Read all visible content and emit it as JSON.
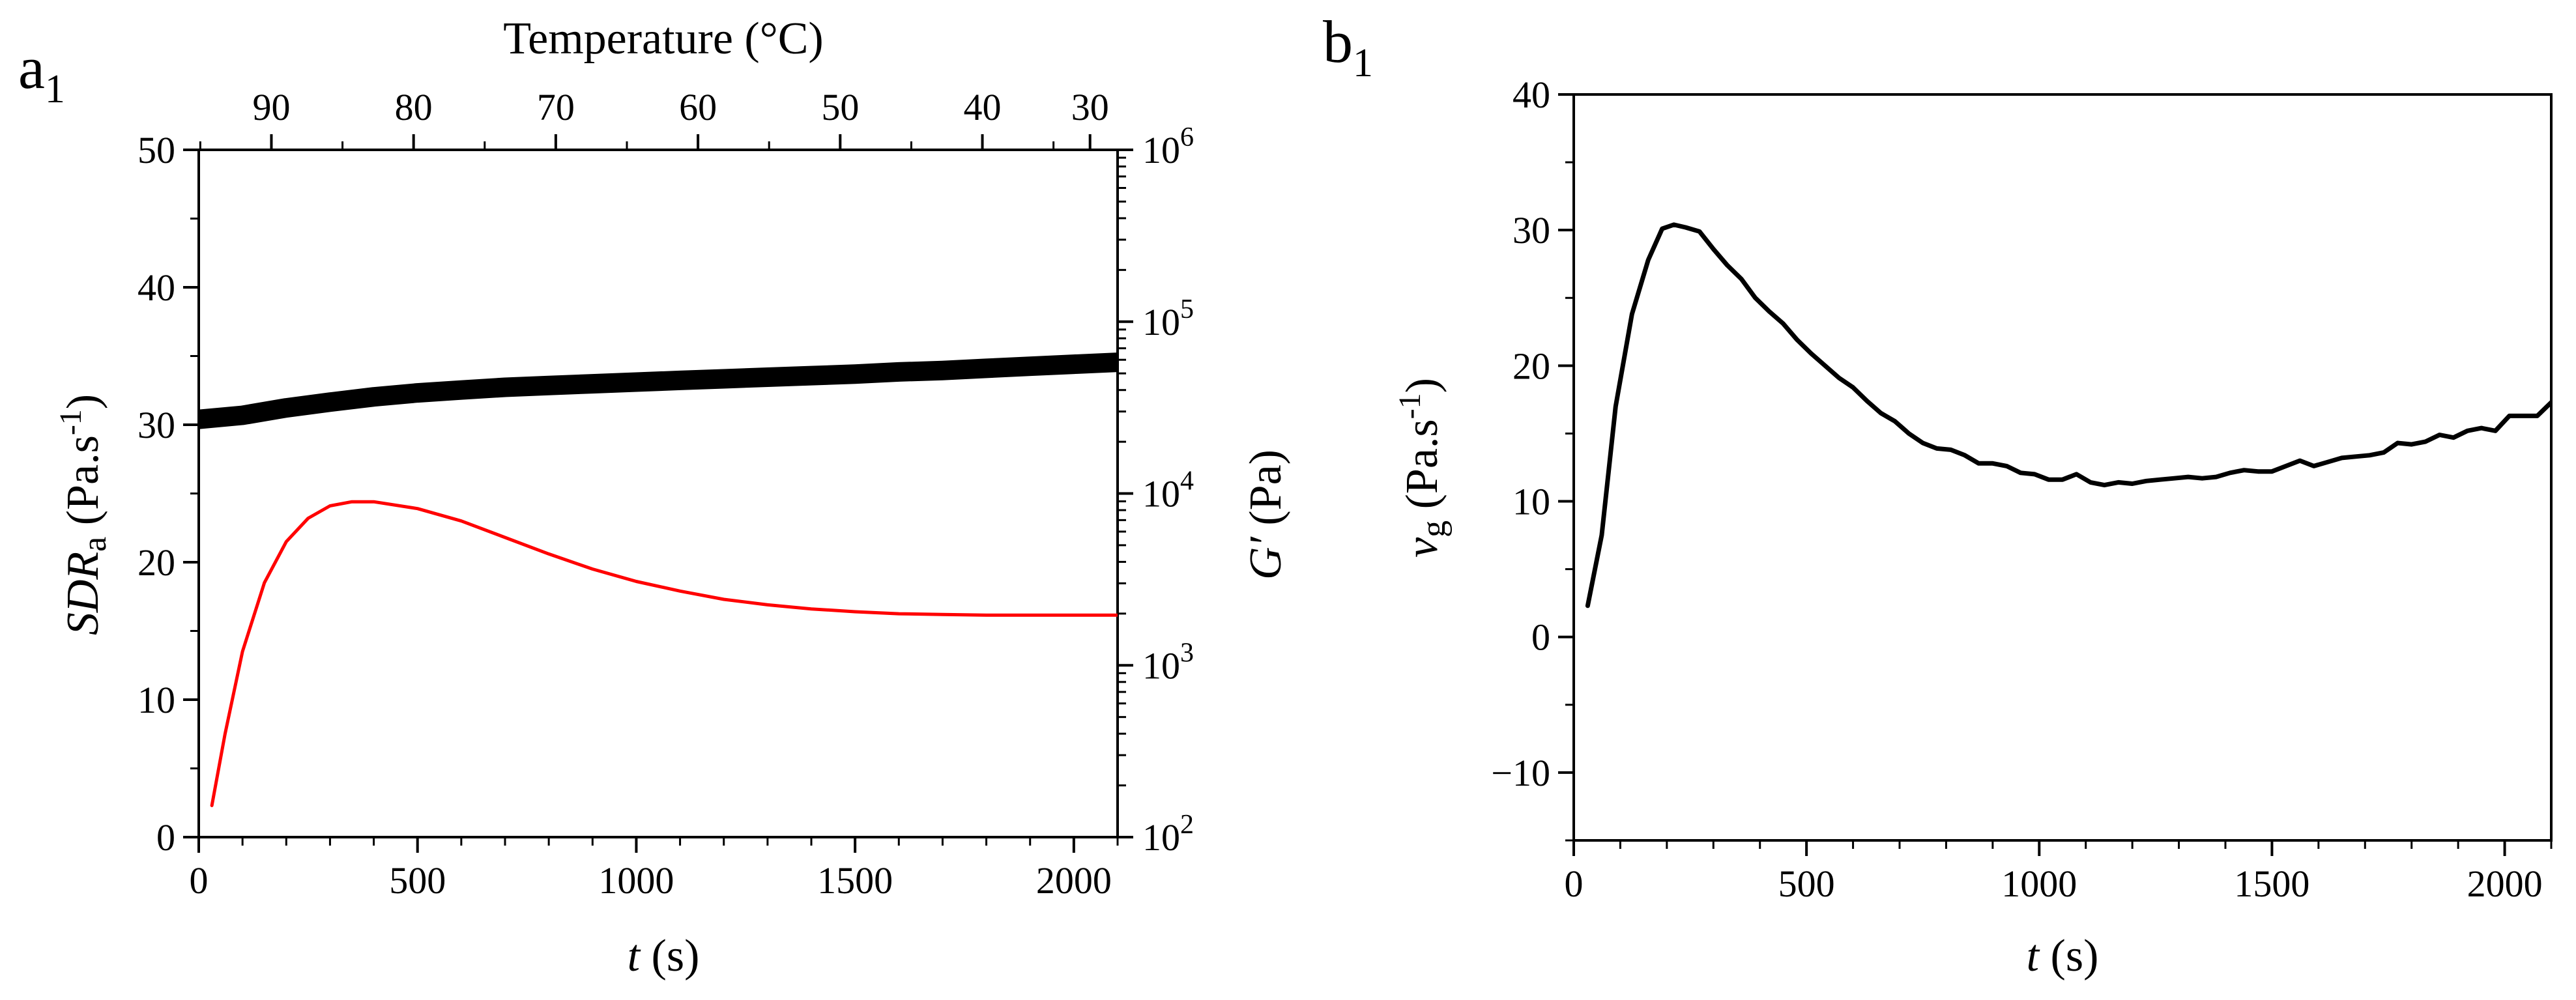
{
  "chart_data": [
    {
      "panel": "a",
      "panel_label": {
        "letter": "a",
        "subscript": "1"
      },
      "type": "line",
      "x": {
        "label_var": "t",
        "label_unit": " (s)",
        "lim": [
          0,
          2100
        ],
        "ticks": [
          0,
          500,
          1000,
          1500,
          2000
        ],
        "tick_labels": [
          "0",
          "500",
          "1000",
          "1500",
          "2000"
        ],
        "minor_step": 100
      },
      "x_top": {
        "label": "Temperature (°C)",
        "ticks_t": [
          166,
          491,
          816,
          1141,
          1466,
          1791,
          2037
        ],
        "tick_labels": [
          "90",
          "80",
          "70",
          "60",
          "50",
          "40",
          "30"
        ]
      },
      "y_left": {
        "label_var": "SDR",
        "label_sub": "a",
        "label_unit": " (Pa.s",
        "label_exp": "-1",
        "label_close": ")",
        "lim": [
          0,
          50
        ],
        "ticks": [
          0,
          10,
          20,
          30,
          40,
          50
        ],
        "tick_labels": [
          "0",
          "10",
          "20",
          "30",
          "40",
          "50"
        ],
        "minor_step": 5
      },
      "y_right": {
        "scale": "log",
        "label_var": "G′",
        "label_unit": " (Pa)",
        "lim": [
          100,
          1000000
        ],
        "tick_base": [
          "10",
          "10",
          "10",
          "10",
          "10"
        ],
        "tick_exp": [
          "2",
          "3",
          "4",
          "5",
          "6"
        ],
        "ticks": [
          100,
          1000,
          10000,
          100000,
          1000000
        ]
      },
      "series": [
        {
          "name": "SDRa",
          "axis": "left",
          "color": "#ff0000",
          "style": "line",
          "x": [
            30,
            60,
            100,
            150,
            200,
            250,
            300,
            350,
            400,
            500,
            600,
            700,
            800,
            900,
            1000,
            1100,
            1200,
            1300,
            1400,
            1500,
            1600,
            1700,
            1800,
            1900,
            2000,
            2100
          ],
          "y": [
            2.3,
            7.5,
            13.5,
            18.5,
            21.5,
            23.2,
            24.1,
            24.4,
            24.4,
            23.9,
            23.0,
            21.8,
            20.6,
            19.5,
            18.6,
            17.9,
            17.3,
            16.9,
            16.6,
            16.4,
            16.25,
            16.2,
            16.15,
            16.15,
            16.15,
            16.15
          ]
        },
        {
          "name": "G′",
          "axis": "right",
          "color": "#000000",
          "style": "thick",
          "x": [
            0,
            100,
            200,
            300,
            400,
            500,
            600,
            700,
            800,
            900,
            1000,
            1100,
            1200,
            1300,
            1400,
            1500,
            1600,
            1700,
            1800,
            1900,
            2000,
            2100
          ],
          "y": [
            27000,
            28500,
            31500,
            34000,
            36500,
            38500,
            40000,
            41500,
            42500,
            43500,
            44500,
            45500,
            46500,
            47500,
            48500,
            49500,
            51000,
            52000,
            53500,
            55000,
            56500,
            58000
          ]
        }
      ]
    },
    {
      "panel": "b",
      "panel_label": {
        "letter": "b",
        "subscript": "1"
      },
      "type": "line",
      "x": {
        "label_var": "t",
        "label_unit": " (s)",
        "lim": [
          0,
          2100
        ],
        "ticks": [
          0,
          500,
          1000,
          1500,
          2000
        ],
        "tick_labels": [
          "0",
          "500",
          "1000",
          "1500",
          "2000"
        ],
        "minor_step": 100
      },
      "y_left": {
        "label_var": "v",
        "label_sub": "g",
        "label_unit": " (Pa.s",
        "label_exp": "-1",
        "label_close": ")",
        "lim": [
          -15,
          40
        ],
        "ticks": [
          -10,
          0,
          10,
          20,
          30,
          40
        ],
        "tick_labels": [
          "−10",
          "0",
          "10",
          "20",
          "30",
          "40"
        ],
        "minor_step": 5
      },
      "series": [
        {
          "name": "vg",
          "axis": "left",
          "color": "#000000",
          "style": "line",
          "x": [
            30,
            60,
            90,
            125,
            160,
            190,
            215,
            240,
            270,
            300,
            330,
            360,
            390,
            420,
            450,
            480,
            510,
            540,
            570,
            600,
            630,
            660,
            690,
            720,
            750,
            780,
            810,
            840,
            870,
            900,
            930,
            960,
            990,
            1020,
            1050,
            1080,
            1110,
            1140,
            1170,
            1200,
            1230,
            1260,
            1290,
            1320,
            1350,
            1380,
            1410,
            1440,
            1470,
            1500,
            1530,
            1560,
            1590,
            1620,
            1650,
            1680,
            1710,
            1740,
            1770,
            1800,
            1830,
            1860,
            1890,
            1920,
            1950,
            1980,
            2010,
            2040,
            2070,
            2100
          ],
          "y": [
            2.3,
            7.5,
            17,
            23.8,
            27.8,
            30.1,
            30.4,
            30.2,
            29.9,
            28.6,
            27.4,
            26.4,
            25.0,
            24.0,
            23.1,
            21.9,
            20.9,
            20.0,
            19.1,
            18.4,
            17.4,
            16.5,
            15.9,
            15.0,
            14.3,
            13.9,
            13.8,
            13.4,
            12.8,
            12.8,
            12.6,
            12.1,
            12.0,
            11.6,
            11.6,
            12.0,
            11.4,
            11.2,
            11.4,
            11.3,
            11.5,
            11.6,
            11.7,
            11.8,
            11.7,
            11.8,
            12.1,
            12.3,
            12.2,
            12.2,
            12.6,
            13.0,
            12.6,
            12.9,
            13.2,
            13.3,
            13.4,
            13.6,
            14.3,
            14.2,
            14.4,
            14.9,
            14.7,
            15.2,
            15.4,
            15.2,
            16.3,
            16.3,
            16.3,
            17.3
          ]
        }
      ]
    }
  ]
}
